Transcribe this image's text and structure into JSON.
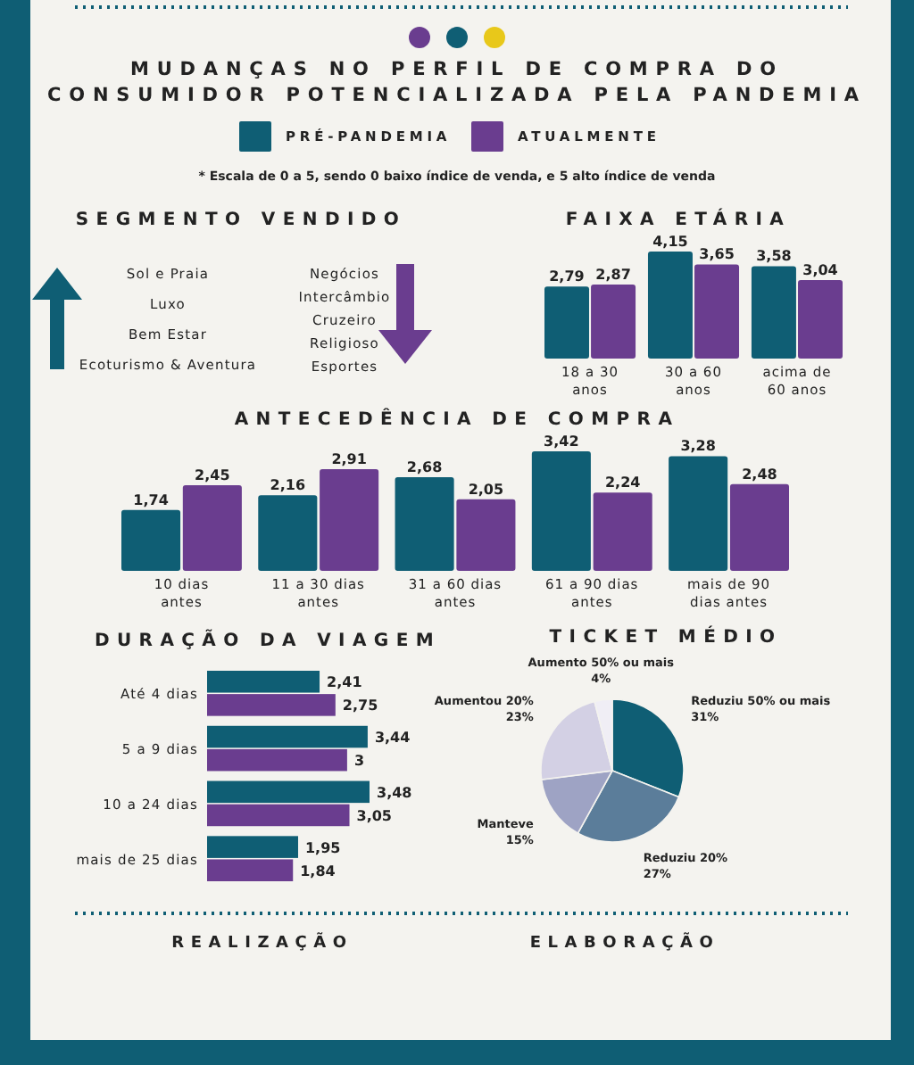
{
  "chart_data": [
    {
      "type": "other",
      "title": "MUDANÇAS NO PERFIL DE COMPRA DO\nCONSUMIDOR POTENCIALIZADA PELA PANDEMIA",
      "subtitle": "* Escala de 0 a 5, sendo 0 baixo índice de venda, e 5 alto índice de venda"
    },
    {
      "type": "other",
      "title": "SEGMENTO VENDIDO",
      "annotations": [
        "Sol e Praia",
        "Luxo",
        "Bem Estar",
        "Ecoturismo & Aventura"
      ]
    },
    {
      "type": "other",
      "annotations": [
        "Negócios",
        "Intercâmbio",
        "Cruzeiro",
        "Religioso",
        "Esportes"
      ]
    },
    {
      "type": "bar",
      "title": "FAIXA ETÁRIA",
      "categories": [
        "18 a 30 anos",
        "30 a 60 anos",
        "acima de 60 anos"
      ],
      "legend": "top",
      "series": [
        {
          "name": "PRÉ-PANDEMIA",
          "color": "#0f5e74",
          "values": [
            2.79,
            4.15,
            3.58
          ],
          "value_labels": [
            "2,79",
            "4,15",
            "3,58"
          ]
        },
        {
          "name": "ATUALMENTE",
          "color": "#6a3d8f",
          "values": [
            2.87,
            3.65,
            3.04
          ],
          "value_labels": [
            "2,87",
            "3,65",
            "3,04"
          ]
        }
      ]
    },
    {
      "type": "bar",
      "title": "ANTECEDÊNCIA DE COMPRA",
      "categories": [
        "10 dias antes",
        "11 a 30 dias antes",
        "31 a 60 dias antes",
        "61 a 90 dias antes",
        "mais de 90 dias antes"
      ],
      "series": [
        {
          "color": "#0f5e74",
          "values": [
            1.74,
            2.16,
            2.68,
            3.42,
            3.28
          ],
          "value_labels": [
            "1,74",
            "2,16",
            "2,68",
            "3,42",
            "3,28"
          ]
        },
        {
          "color": "#6a3d8f",
          "values": [
            2.45,
            2.91,
            2.05,
            2.24,
            2.48
          ],
          "value_labels": [
            "2,45",
            "2,91",
            "2,05",
            "2,24",
            "2,48"
          ]
        }
      ]
    },
    {
      "type": "bar",
      "orientation": "horizontal",
      "title": "DURAÇÃO DA VIAGEM",
      "categories": [
        "Até 4 dias",
        "5 a 9 dias",
        "10 a 24 dias",
        "mais de 25 dias"
      ],
      "series": [
        {
          "color": "#0f5e74",
          "values": [
            2.41,
            3.44,
            3.48,
            1.95
          ],
          "value_labels": [
            "2,41",
            "3,44",
            "3,48",
            "1,95"
          ]
        },
        {
          "color": "#6a3d8f",
          "values": [
            2.75,
            3,
            3.05,
            1.84
          ],
          "value_labels": [
            "2,75",
            "3",
            "3,05",
            "1,84"
          ]
        }
      ]
    },
    {
      "type": "pie",
      "title": "TICKET MÉDIO",
      "categories": [
        "Reduziu 50% ou mais",
        "Reduziu 20%",
        "Manteve",
        "Aumentou 20%",
        "Aumento 50% ou mais"
      ],
      "values": [
        31,
        27,
        15,
        23,
        4
      ],
      "value_labels": [
        "31%",
        "27%",
        "15%",
        "23%",
        "4%"
      ],
      "colors": [
        "#0f5e74",
        "#5b7d9a",
        "#9ea3c4",
        "#d3d0e4",
        "#f0eef5"
      ]
    },
    {
      "type": "other",
      "annotations": [
        "REALIZAÇÃO",
        "ELABORAÇÃO"
      ]
    }
  ]
}
